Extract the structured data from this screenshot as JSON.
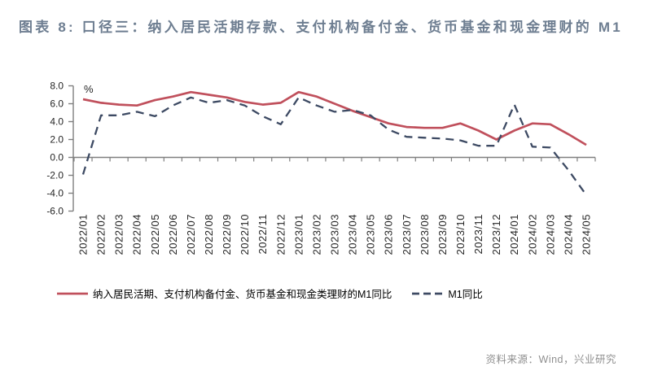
{
  "header": {
    "title": "图表 8: 口径三：纳入居民活期存款、支付机构备付金、货币基金和现金理财的 M1"
  },
  "chart_data": {
    "type": "line",
    "title": "",
    "unit_label": "%",
    "xlabel": "",
    "ylabel": "%",
    "ylim": [
      -6.0,
      8.0
    ],
    "ytick_step": 2.0,
    "grid": false,
    "legend_position": "bottom",
    "categories": [
      "2022/01",
      "2022/02",
      "2022/03",
      "2022/04",
      "2022/05",
      "2022/06",
      "2022/07",
      "2022/08",
      "2022/09",
      "2022/10",
      "2022/11",
      "2022/12",
      "2023/01",
      "2023/02",
      "2023/03",
      "2023/04",
      "2023/05",
      "2023/06",
      "2023/07",
      "2023/08",
      "2023/09",
      "2023/10",
      "2023/11",
      "2023/12",
      "2024/01",
      "2024/02",
      "2024/03",
      "2024/04",
      "2024/05"
    ],
    "series": [
      {
        "name": "纳入居民活期、支付机构备付金、货币基金和现金类理财的M1同比",
        "style": "solid",
        "color": "#C0505C",
        "values": [
          6.5,
          6.1,
          5.9,
          5.8,
          6.4,
          6.8,
          7.3,
          7.0,
          6.7,
          6.2,
          5.9,
          6.1,
          7.3,
          6.8,
          6.0,
          5.2,
          4.5,
          3.8,
          3.4,
          3.3,
          3.3,
          3.8,
          3.0,
          2.0,
          3.0,
          3.8,
          3.7,
          2.6,
          1.4
        ]
      },
      {
        "name": "M1同比",
        "style": "dashed",
        "color": "#3D4A63",
        "values": [
          -1.9,
          4.7,
          4.7,
          5.1,
          4.6,
          5.8,
          6.7,
          6.1,
          6.4,
          5.8,
          4.6,
          3.7,
          6.7,
          5.8,
          5.1,
          5.3,
          4.7,
          3.1,
          2.3,
          2.2,
          2.1,
          1.9,
          1.3,
          1.3,
          5.9,
          1.2,
          1.1,
          -1.4,
          -4.2
        ]
      }
    ]
  },
  "footer": {
    "source": "资料来源：Wind，兴业研究"
  },
  "colors": {
    "title_text": "#6E7E91",
    "axis_line": "#7F7F7F",
    "tick_text": "#262626",
    "source_text": "#8F8F8F",
    "series_solid": "#C0505C",
    "series_dashed": "#3D4A63"
  }
}
